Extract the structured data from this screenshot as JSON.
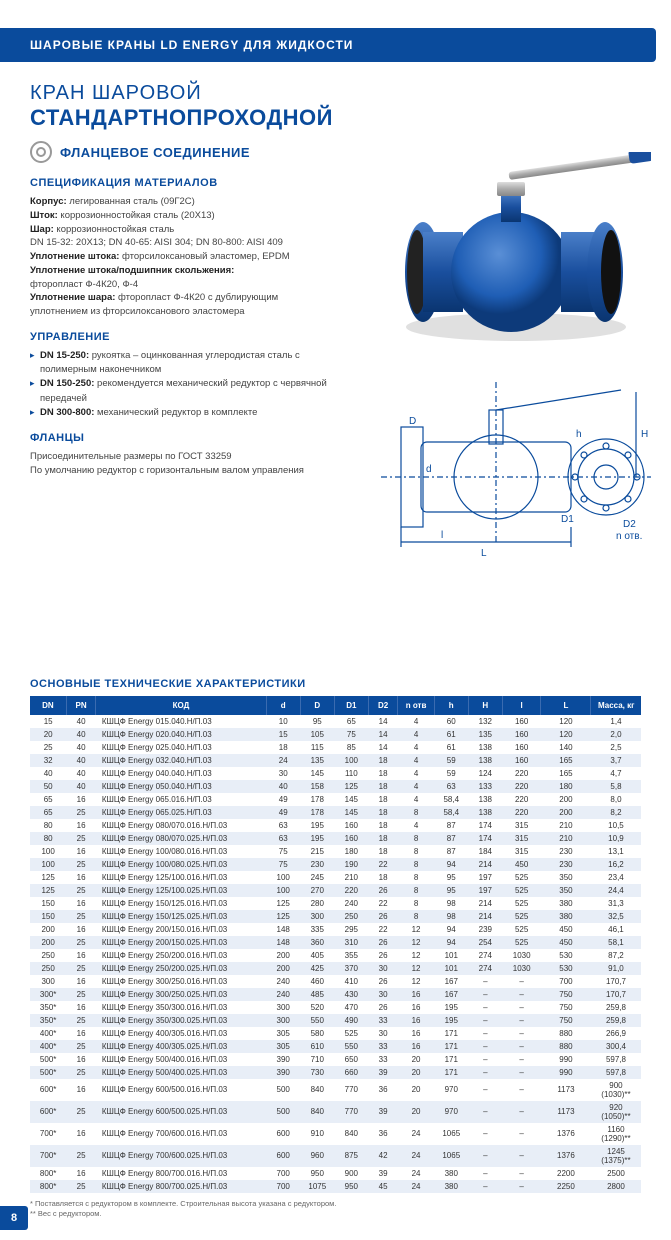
{
  "header": "ШАРОВЫЕ КРАНЫ LD ENERGY ДЛЯ ЖИДКОСТИ",
  "title1": "КРАН ШАРОВОЙ",
  "title2": "СТАНДАРТНОПРОХОДНОЙ",
  "subtitle": "ФЛАНЦЕВОЕ СОЕДИНЕНИЕ",
  "sections": {
    "materials": {
      "title": "СПЕЦИФИКАЦИЯ МАТЕРИАЛОВ",
      "lines": [
        {
          "b": "Корпус:",
          "t": " легированная сталь (09Г2С)"
        },
        {
          "b": "Шток:",
          "t": " коррозионностойкая сталь (20Х13)"
        },
        {
          "b": "Шар:",
          "t": " коррозионностойкая сталь"
        },
        {
          "b": "",
          "t": "DN 15-32: 20Х13; DN 40-65: AISI 304; DN 80-800: AISI 409"
        },
        {
          "b": "Уплотнение штока:",
          "t": " фторсилоксановый эластомер, EPDM"
        },
        {
          "b": "Уплотнение штока/подшипник скольжения:",
          "t": ""
        },
        {
          "b": "",
          "t": "фторопласт Ф-4К20, Ф-4"
        },
        {
          "b": "Уплотнение шара:",
          "t": " фторопласт Ф-4К20 с дублирующим"
        },
        {
          "b": "",
          "t": "уплотнением из фторсилоксанового эластомера"
        }
      ]
    },
    "control": {
      "title": "УПРАВЛЕНИЕ",
      "bullets": [
        {
          "b": "DN 15-250:",
          "t": " рукоятка – оцинкованная углеродистая сталь с полимерным наконечником"
        },
        {
          "b": "DN 150-250:",
          "t": " рекомендуется механический редуктор с червячной передачей"
        },
        {
          "b": "DN 300-800:",
          "t": " механический редуктор в комплекте"
        }
      ]
    },
    "flanges": {
      "title": "ФЛАНЦЫ",
      "lines": [
        {
          "b": "",
          "t": "Присоединительные размеры по ГОСТ 33259"
        },
        {
          "b": "",
          "t": "По умолчанию редуктор с горизонтальным валом управления"
        }
      ]
    }
  },
  "diagram_labels": {
    "L": "L",
    "l": "l",
    "H": "H",
    "h": "h",
    "D": "D",
    "D1": "D1",
    "D2": "D2",
    "n": "n отв.",
    "d": "d"
  },
  "table": {
    "title": "ОСНОВНЫЕ ТЕХНИЧЕСКИЕ ХАРАКТЕРИСТИКИ",
    "columns": [
      "DN",
      "PN",
      "КОД",
      "d",
      "D",
      "D1",
      "D2",
      "n отв",
      "h",
      "H",
      "l",
      "L",
      "Масса, кг"
    ],
    "col_widths": [
      "32",
      "26",
      "150",
      "30",
      "30",
      "30",
      "26",
      "32",
      "30",
      "30",
      "34",
      "44",
      "44"
    ],
    "rows": [
      [
        "15",
        "40",
        "КШЦФ Energy 015.040.Н/П.03",
        "10",
        "95",
        "65",
        "14",
        "4",
        "60",
        "132",
        "160",
        "120",
        "1,4"
      ],
      [
        "20",
        "40",
        "КШЦФ Energy 020.040.Н/П.03",
        "15",
        "105",
        "75",
        "14",
        "4",
        "61",
        "135",
        "160",
        "120",
        "2,0"
      ],
      [
        "25",
        "40",
        "КШЦФ Energy 025.040.Н/П.03",
        "18",
        "115",
        "85",
        "14",
        "4",
        "61",
        "138",
        "160",
        "140",
        "2,5"
      ],
      [
        "32",
        "40",
        "КШЦФ Energy 032.040.Н/П.03",
        "24",
        "135",
        "100",
        "18",
        "4",
        "59",
        "138",
        "160",
        "165",
        "3,7"
      ],
      [
        "40",
        "40",
        "КШЦФ Energy 040.040.Н/П.03",
        "30",
        "145",
        "110",
        "18",
        "4",
        "59",
        "124",
        "220",
        "165",
        "4,7"
      ],
      [
        "50",
        "40",
        "КШЦФ Energy 050.040.Н/П.03",
        "40",
        "158",
        "125",
        "18",
        "4",
        "63",
        "133",
        "220",
        "180",
        "5,8"
      ],
      [
        "65",
        "16",
        "КШЦФ Energy 065.016.Н/П.03",
        "49",
        "178",
        "145",
        "18",
        "4",
        "58,4",
        "138",
        "220",
        "200",
        "8,0"
      ],
      [
        "65",
        "25",
        "КШЦФ Energy 065.025.Н/П.03",
        "49",
        "178",
        "145",
        "18",
        "8",
        "58,4",
        "138",
        "220",
        "200",
        "8,2"
      ],
      [
        "80",
        "16",
        "КШЦФ Energy 080/070.016.Н/П.03",
        "63",
        "195",
        "160",
        "18",
        "4",
        "87",
        "174",
        "315",
        "210",
        "10,5"
      ],
      [
        "80",
        "25",
        "КШЦФ Energy 080/070.025.Н/П.03",
        "63",
        "195",
        "160",
        "18",
        "8",
        "87",
        "174",
        "315",
        "210",
        "10,9"
      ],
      [
        "100",
        "16",
        "КШЦФ Energy 100/080.016.Н/П.03",
        "75",
        "215",
        "180",
        "18",
        "8",
        "87",
        "184",
        "315",
        "230",
        "13,1"
      ],
      [
        "100",
        "25",
        "КШЦФ Energy 100/080.025.Н/П.03",
        "75",
        "230",
        "190",
        "22",
        "8",
        "94",
        "214",
        "450",
        "230",
        "16,2"
      ],
      [
        "125",
        "16",
        "КШЦФ Energy 125/100.016.Н/П.03",
        "100",
        "245",
        "210",
        "18",
        "8",
        "95",
        "197",
        "525",
        "350",
        "23,4"
      ],
      [
        "125",
        "25",
        "КШЦФ Energy 125/100.025.Н/П.03",
        "100",
        "270",
        "220",
        "26",
        "8",
        "95",
        "197",
        "525",
        "350",
        "24,4"
      ],
      [
        "150",
        "16",
        "КШЦФ Energy 150/125.016.Н/П.03",
        "125",
        "280",
        "240",
        "22",
        "8",
        "98",
        "214",
        "525",
        "380",
        "31,3"
      ],
      [
        "150",
        "25",
        "КШЦФ Energy 150/125.025.Н/П.03",
        "125",
        "300",
        "250",
        "26",
        "8",
        "98",
        "214",
        "525",
        "380",
        "32,5"
      ],
      [
        "200",
        "16",
        "КШЦФ Energy 200/150.016.Н/П.03",
        "148",
        "335",
        "295",
        "22",
        "12",
        "94",
        "239",
        "525",
        "450",
        "46,1"
      ],
      [
        "200",
        "25",
        "КШЦФ Energy 200/150.025.Н/П.03",
        "148",
        "360",
        "310",
        "26",
        "12",
        "94",
        "254",
        "525",
        "450",
        "58,1"
      ],
      [
        "250",
        "16",
        "КШЦФ Energy 250/200.016.Н/П.03",
        "200",
        "405",
        "355",
        "26",
        "12",
        "101",
        "274",
        "1030",
        "530",
        "87,2"
      ],
      [
        "250",
        "25",
        "КШЦФ Energy 250/200.025.Н/П.03",
        "200",
        "425",
        "370",
        "30",
        "12",
        "101",
        "274",
        "1030",
        "530",
        "91,0"
      ],
      [
        "300",
        "16",
        "КШЦФ Energy 300/250.016.Н/П.03",
        "240",
        "460",
        "410",
        "26",
        "12",
        "167",
        "–",
        "–",
        "700",
        "170,7"
      ],
      [
        "300*",
        "25",
        "КШЦФ Energy 300/250.025.Н/П.03",
        "240",
        "485",
        "430",
        "30",
        "16",
        "167",
        "–",
        "–",
        "750",
        "170,7"
      ],
      [
        "350*",
        "16",
        "КШЦФ Energy 350/300.016.Н/П.03",
        "300",
        "520",
        "470",
        "26",
        "16",
        "195",
        "–",
        "–",
        "750",
        "259,8"
      ],
      [
        "350*",
        "25",
        "КШЦФ Energy 350/300.025.Н/П.03",
        "300",
        "550",
        "490",
        "33",
        "16",
        "195",
        "–",
        "–",
        "750",
        "259,8"
      ],
      [
        "400*",
        "16",
        "КШЦФ Energy 400/305.016.Н/П.03",
        "305",
        "580",
        "525",
        "30",
        "16",
        "171",
        "–",
        "–",
        "880",
        "266,9"
      ],
      [
        "400*",
        "25",
        "КШЦФ Energy 400/305.025.Н/П.03",
        "305",
        "610",
        "550",
        "33",
        "16",
        "171",
        "–",
        "–",
        "880",
        "300,4"
      ],
      [
        "500*",
        "16",
        "КШЦФ Energy 500/400.016.Н/П.03",
        "390",
        "710",
        "650",
        "33",
        "20",
        "171",
        "–",
        "–",
        "990",
        "597,8"
      ],
      [
        "500*",
        "25",
        "КШЦФ Energy 500/400.025.Н/П.03",
        "390",
        "730",
        "660",
        "39",
        "20",
        "171",
        "–",
        "–",
        "990",
        "597,8"
      ],
      [
        "600*",
        "16",
        "КШЦФ Energy 600/500.016.Н/П.03",
        "500",
        "840",
        "770",
        "36",
        "20",
        "970",
        "–",
        "–",
        "1173",
        "900 (1030)**"
      ],
      [
        "600*",
        "25",
        "КШЦФ Energy 600/500.025.Н/П.03",
        "500",
        "840",
        "770",
        "39",
        "20",
        "970",
        "–",
        "–",
        "1173",
        "920 (1050)**"
      ],
      [
        "700*",
        "16",
        "КШЦФ Energy 700/600.016.Н/П.03",
        "600",
        "910",
        "840",
        "36",
        "24",
        "1065",
        "–",
        "–",
        "1376",
        "1160 (1290)**"
      ],
      [
        "700*",
        "25",
        "КШЦФ Energy 700/600.025.Н/П.03",
        "600",
        "960",
        "875",
        "42",
        "24",
        "1065",
        "–",
        "–",
        "1376",
        "1245 (1375)**"
      ],
      [
        "800*",
        "16",
        "КШЦФ Energy 800/700.016.Н/П.03",
        "700",
        "950",
        "900",
        "39",
        "24",
        "380",
        "–",
        "–",
        "2200",
        "2500"
      ],
      [
        "800*",
        "25",
        "КШЦФ Energy 800/700.025.Н/П.03",
        "700",
        "1075",
        "950",
        "45",
        "24",
        "380",
        "–",
        "–",
        "2250",
        "2800"
      ]
    ]
  },
  "footnotes": [
    "* Поставляется с редуктором в комплекте. Строительная высота указана с редуктором.",
    "** Вес с редуктором."
  ],
  "page_num": "8",
  "colors": {
    "brand": "#0a4b9c",
    "row_alt": "#e8eef7",
    "text": "#333333"
  }
}
